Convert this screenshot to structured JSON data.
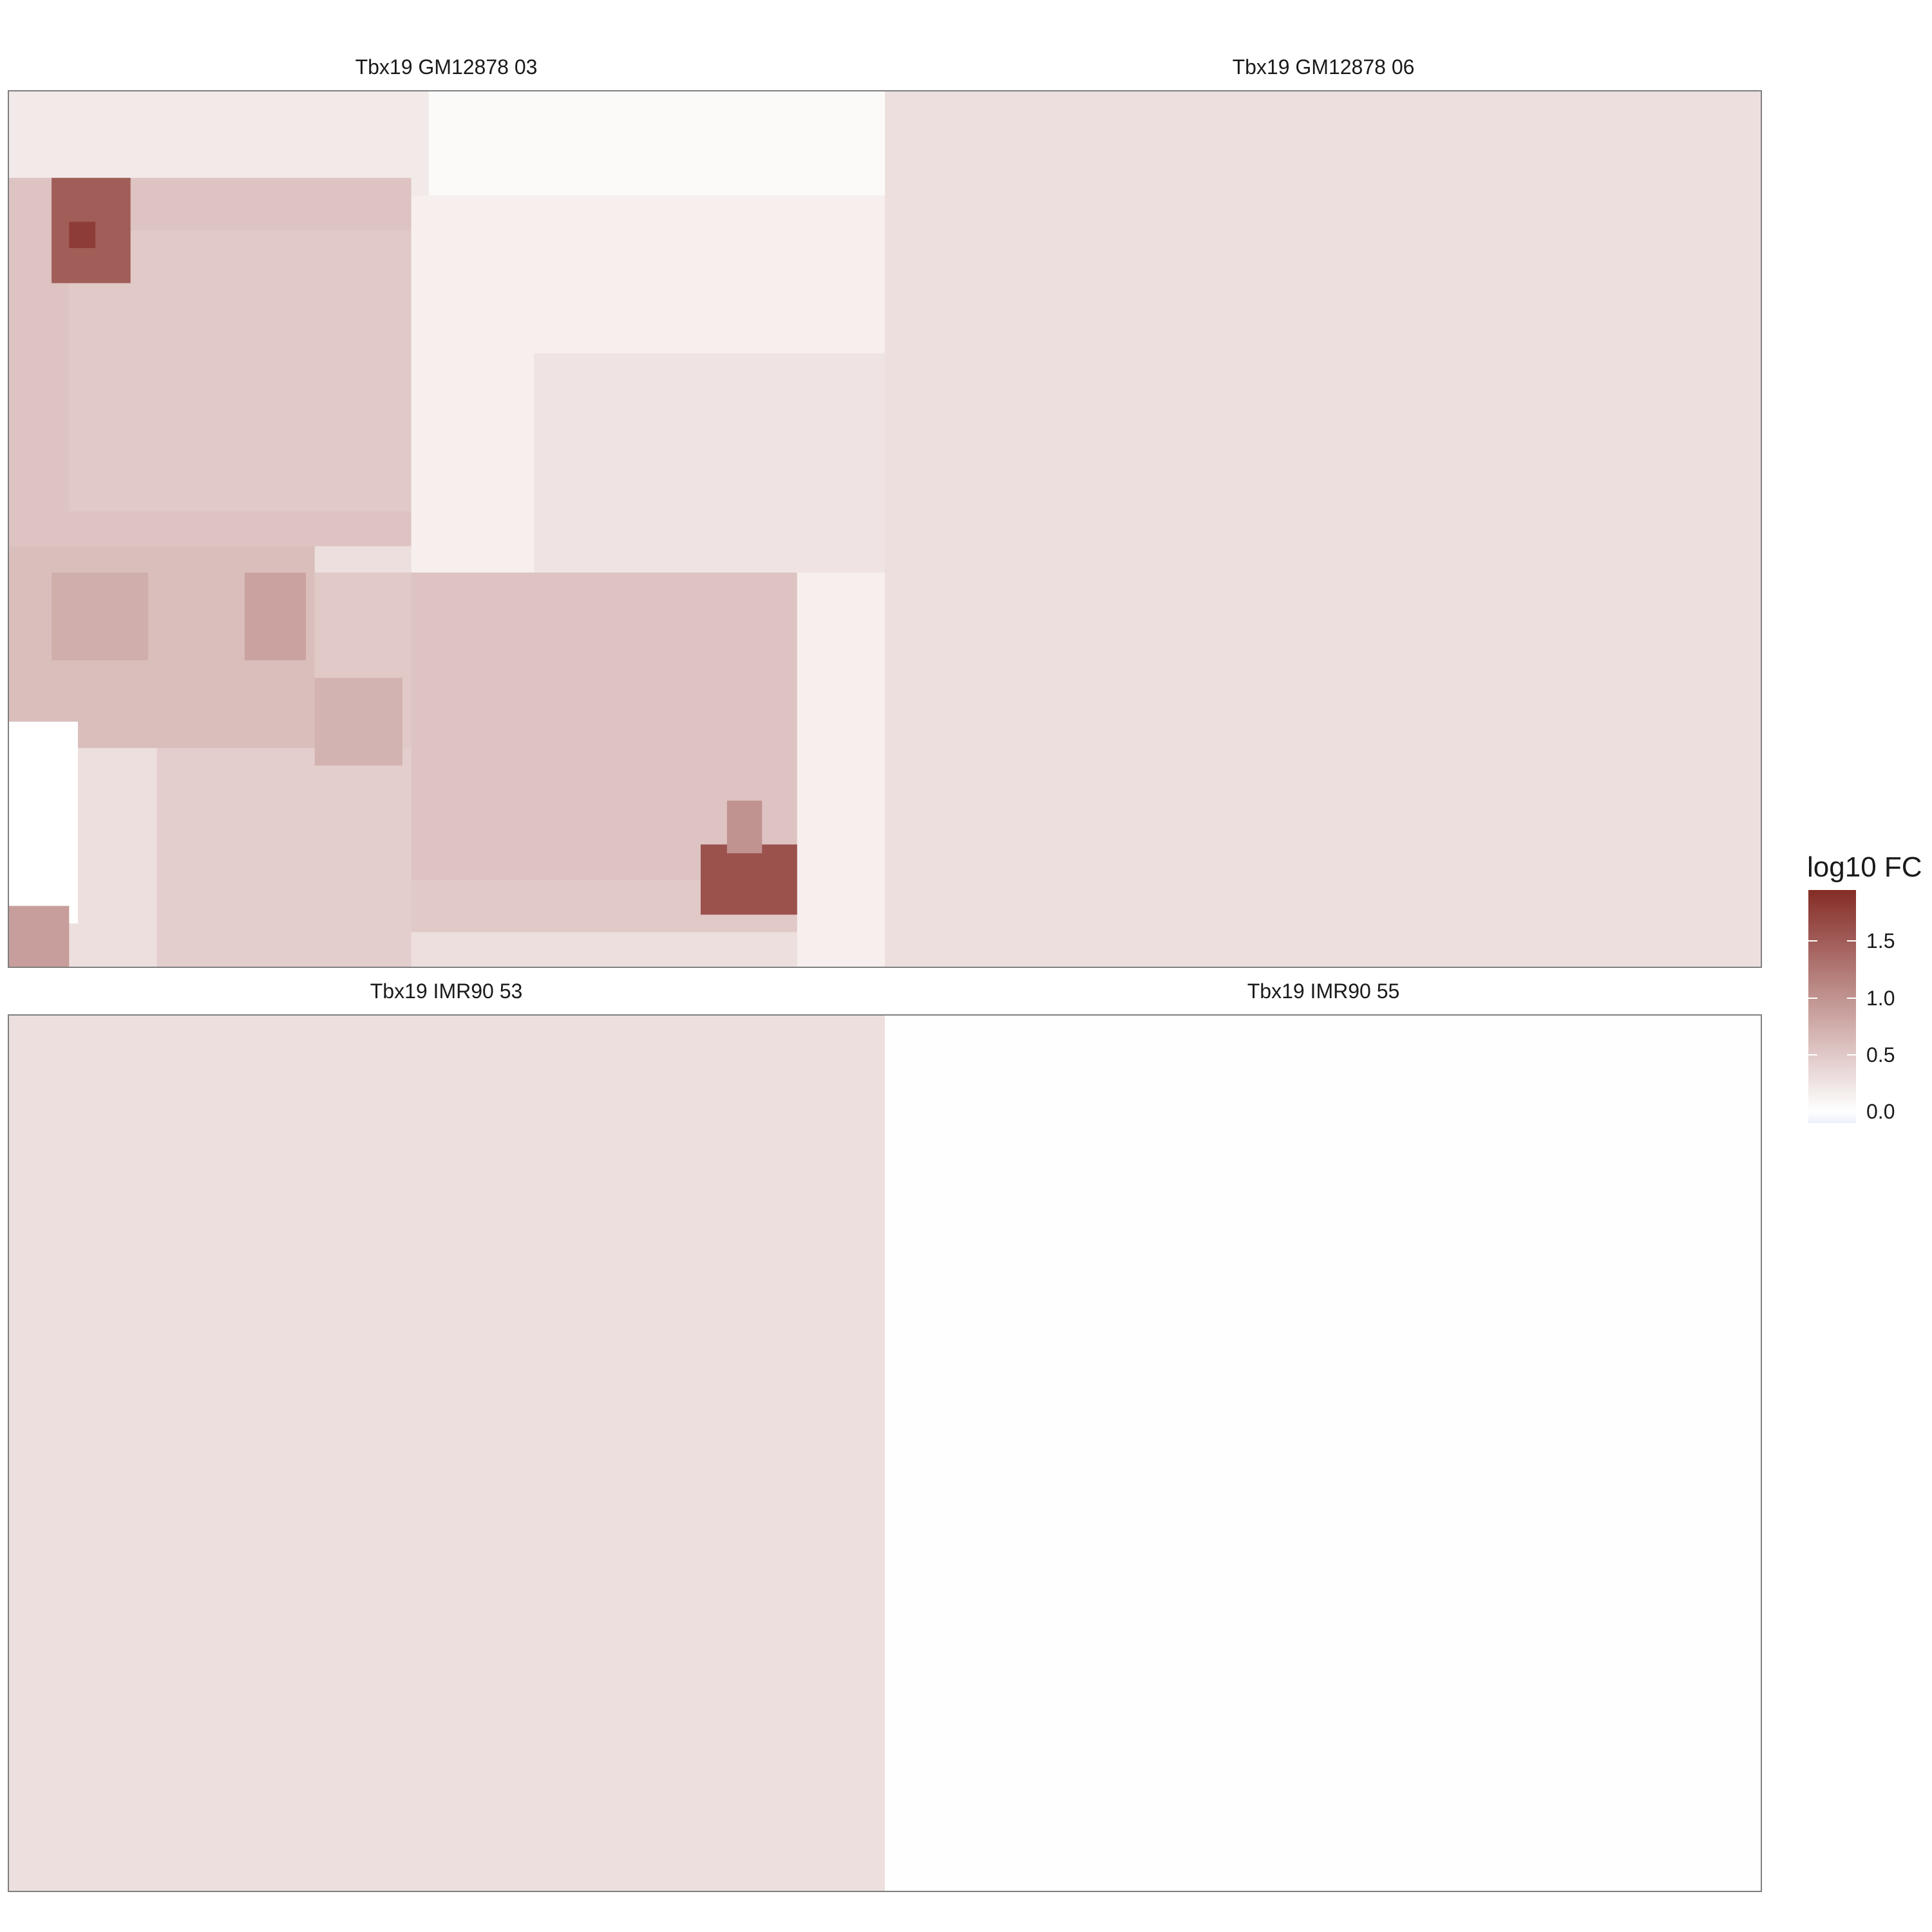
{
  "chart_data": {
    "type": "heatmap",
    "legend": {
      "title": "log10 FC",
      "ticks": [
        {
          "value": 0.0,
          "label": "0.0"
        },
        {
          "value": 0.5,
          "label": "0.5"
        },
        {
          "value": 1.0,
          "label": "1.0"
        },
        {
          "value": 1.5,
          "label": "1.5"
        }
      ],
      "range": [
        -0.1,
        1.95
      ],
      "colors": {
        "low": "#eef0fa",
        "mid": "#ffffff",
        "high": "#852c26"
      },
      "placement": "right"
    },
    "panels": [
      {
        "title": "Tbx19 GM12878 03",
        "background": 0.3,
        "regions": [
          {
            "x": [
              0.0,
              1.0
            ],
            "y": [
              0.0,
              0.12
            ],
            "value": 0.2
          },
          {
            "x": [
              0.48,
              1.0
            ],
            "y": [
              0.0,
              0.12
            ],
            "value": 0.05
          },
          {
            "x": [
              0.0,
              0.46
            ],
            "y": [
              0.1,
              0.52
            ],
            "value": 0.55
          },
          {
            "x": [
              0.07,
              0.46
            ],
            "y": [
              0.16,
              0.48
            ],
            "value": 0.5
          },
          {
            "x": [
              0.05,
              0.14
            ],
            "y": [
              0.1,
              0.22
            ],
            "value": 1.5
          },
          {
            "x": [
              0.07,
              0.1
            ],
            "y": [
              0.15,
              0.18
            ],
            "value": 1.8
          },
          {
            "x": [
              0.46,
              1.0
            ],
            "y": [
              0.12,
              0.55
            ],
            "value": 0.15
          },
          {
            "x": [
              0.6,
              1.0
            ],
            "y": [
              0.3,
              0.55
            ],
            "value": 0.25
          },
          {
            "x": [
              0.0,
              0.35
            ],
            "y": [
              0.52,
              0.75
            ],
            "value": 0.6
          },
          {
            "x": [
              0.27,
              0.34
            ],
            "y": [
              0.55,
              0.65
            ],
            "value": 0.85
          },
          {
            "x": [
              0.05,
              0.16
            ],
            "y": [
              0.55,
              0.65
            ],
            "value": 0.75
          },
          {
            "x": [
              0.35,
              0.9
            ],
            "y": [
              0.55,
              0.96
            ],
            "value": 0.5
          },
          {
            "x": [
              0.46,
              0.9
            ],
            "y": [
              0.55,
              0.9
            ],
            "value": 0.55
          },
          {
            "x": [
              0.17,
              0.46
            ],
            "y": [
              0.75,
              1.0
            ],
            "value": 0.45
          },
          {
            "x": [
              0.35,
              0.45
            ],
            "y": [
              0.67,
              0.77
            ],
            "value": 0.7
          },
          {
            "x": [
              0.0,
              0.08
            ],
            "y": [
              0.72,
              0.95
            ],
            "value": 0.0
          },
          {
            "x": [
              0.0,
              0.07
            ],
            "y": [
              0.93,
              1.0
            ],
            "value": 0.9
          },
          {
            "x": [
              0.79,
              0.91
            ],
            "y": [
              0.86,
              0.94
            ],
            "value": 1.6
          },
          {
            "x": [
              0.82,
              0.86
            ],
            "y": [
              0.81,
              0.87
            ],
            "value": 1.0
          },
          {
            "x": [
              0.9,
              1.0
            ],
            "y": [
              0.55,
              1.0
            ],
            "value": 0.15
          }
        ]
      },
      {
        "title": "Tbx19 GM12878 06",
        "background": 0.3,
        "regions": []
      },
      {
        "title": "Tbx19 IMR90 53",
        "background": 0.3,
        "regions": []
      },
      {
        "title": "Tbx19 IMR90 55",
        "background": 0.01,
        "regions": []
      }
    ]
  }
}
